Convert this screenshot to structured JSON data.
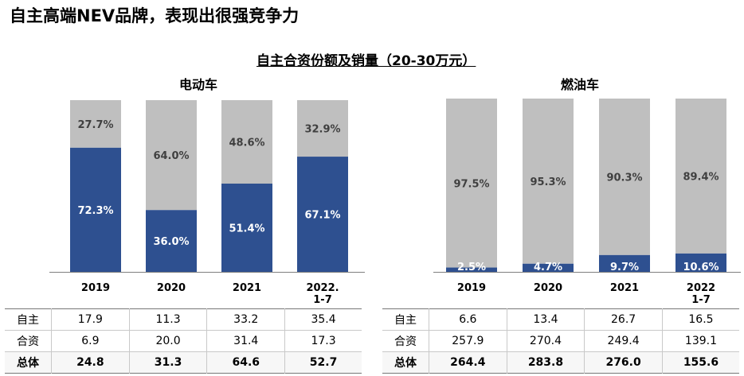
{
  "page": {
    "title": "自主高端NEV品牌，表现出很强竞争力",
    "subtitle": "自主合资份额及销量（20-30万元）"
  },
  "colors": {
    "domestic": "#2e5090",
    "jv": "#bfbfbf"
  },
  "chart_data": [
    {
      "type": "bar",
      "stacked": true,
      "title": "电动车",
      "categories": [
        "2019",
        "2020",
        "2021",
        "2022.\n1-7"
      ],
      "series": [
        {
          "name": "自主",
          "values": [
            72.3,
            36.0,
            51.4,
            67.1
          ],
          "labels": [
            "72.3%",
            "36.0%",
            "51.4%",
            "67.1%"
          ]
        },
        {
          "name": "合资",
          "values": [
            27.7,
            64.0,
            48.6,
            32.9
          ],
          "labels": [
            "27.7%",
            "64.0%",
            "48.6%",
            "32.9%"
          ]
        }
      ],
      "ylim": [
        0,
        100
      ],
      "table": {
        "rows": [
          {
            "label": "自主",
            "values": [
              "17.9",
              "11.3",
              "33.2",
              "35.4"
            ]
          },
          {
            "label": "合资",
            "values": [
              "6.9",
              "20.0",
              "31.4",
              "17.3"
            ]
          },
          {
            "label": "总体",
            "values": [
              "24.8",
              "31.3",
              "64.6",
              "52.7"
            ],
            "bold": true
          }
        ]
      }
    },
    {
      "type": "bar",
      "stacked": true,
      "title": "燃油车",
      "categories": [
        "2019",
        "2020",
        "2021",
        "2022\n1-7"
      ],
      "series": [
        {
          "name": "自主",
          "values": [
            2.5,
            4.7,
            9.7,
            10.6
          ],
          "labels": [
            "2.5%",
            "4.7%",
            "9.7%",
            "10.6%"
          ]
        },
        {
          "name": "合资",
          "values": [
            97.5,
            95.3,
            90.3,
            89.4
          ],
          "labels": [
            "97.5%",
            "95.3%",
            "90.3%",
            "89.4%"
          ]
        }
      ],
      "ylim": [
        0,
        100
      ],
      "table": {
        "rows": [
          {
            "label": "自主",
            "values": [
              "6.6",
              "13.4",
              "26.7",
              "16.5"
            ]
          },
          {
            "label": "合资",
            "values": [
              "257.9",
              "270.4",
              "249.4",
              "139.1"
            ]
          },
          {
            "label": "总体",
            "values": [
              "264.4",
              "283.8",
              "276.0",
              "155.6"
            ],
            "bold": true
          }
        ]
      }
    }
  ]
}
